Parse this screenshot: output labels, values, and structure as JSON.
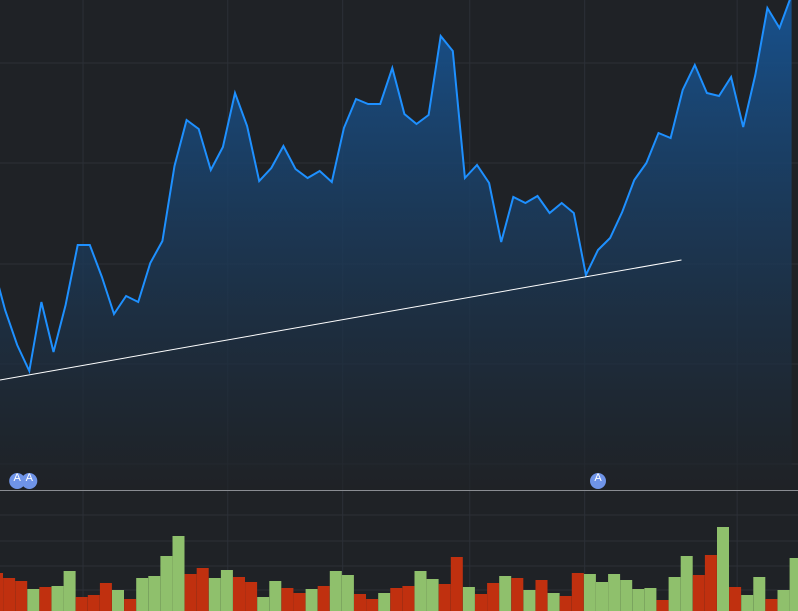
{
  "chart_data": [
    {
      "type": "area",
      "color": "#1e90ff",
      "fill_color": "#17528f",
      "values": [
        225,
        180,
        145,
        119,
        188,
        138,
        185,
        245,
        245,
        213,
        176,
        194,
        188,
        227,
        249,
        324,
        370,
        361,
        320,
        343,
        397,
        364,
        309,
        322,
        344,
        321,
        312,
        319,
        308,
        362,
        391,
        386,
        386,
        422,
        376,
        366,
        375,
        454,
        439,
        312,
        325,
        307,
        248,
        293,
        287,
        294,
        277,
        287,
        277,
        215,
        240,
        252,
        278,
        310,
        327,
        357,
        352,
        400,
        425,
        397,
        394,
        413,
        363,
        415,
        482,
        462,
        495
      ],
      "ylim": [
        0,
        490
      ],
      "grid": true,
      "grid_y": [
        427,
        327,
        226,
        126,
        26
      ],
      "grid_x": [
        7.44,
        19.4,
        28.9,
        39.4,
        48.9,
        61.5
      ],
      "trend_line": {
        "x": [
          0.58,
          56.9
        ],
        "values": [
          110,
          230
        ],
        "color": "#ffffff"
      },
      "events": {
        "x": [
          2,
          3,
          50
        ],
        "labels": [
          "A",
          "A",
          "A"
        ],
        "color": "#6f94e8"
      }
    },
    {
      "type": "bar",
      "values": [
        38,
        33,
        30,
        22,
        24,
        25,
        40,
        14,
        16,
        28,
        21,
        12,
        33,
        35,
        55,
        75,
        37,
        43,
        33,
        41,
        34,
        29,
        14,
        30,
        23,
        18,
        22,
        25,
        40,
        36,
        17,
        12,
        18,
        23,
        25,
        40,
        32,
        27,
        54,
        24,
        17,
        28,
        35,
        33,
        21,
        31,
        18,
        15,
        38,
        37,
        29,
        37,
        31,
        22,
        23,
        11,
        34,
        55,
        36,
        56,
        84,
        24,
        16,
        34,
        12,
        21,
        53
      ],
      "colors": [
        "#c0300f",
        "#c0300f",
        "#c0300f",
        "#8fc06c",
        "#c0300f",
        "#8fc06c",
        "#8fc06c",
        "#c0300f",
        "#c0300f",
        "#c0300f",
        "#8fc06c",
        "#c0300f",
        "#8fc06c",
        "#8fc06c",
        "#8fc06c",
        "#8fc06c",
        "#c0300f",
        "#c0300f",
        "#8fc06c",
        "#8fc06c",
        "#c0300f",
        "#c0300f",
        "#8fc06c",
        "#8fc06c",
        "#c0300f",
        "#c0300f",
        "#8fc06c",
        "#c0300f",
        "#8fc06c",
        "#8fc06c",
        "#c0300f",
        "#c0300f",
        "#8fc06c",
        "#c0300f",
        "#c0300f",
        "#8fc06c",
        "#8fc06c",
        "#c0300f",
        "#c0300f",
        "#8fc06c",
        "#c0300f",
        "#c0300f",
        "#8fc06c",
        "#c0300f",
        "#8fc06c",
        "#c0300f",
        "#8fc06c",
        "#c0300f",
        "#c0300f",
        "#8fc06c",
        "#8fc06c",
        "#8fc06c",
        "#8fc06c",
        "#8fc06c",
        "#8fc06c",
        "#c0300f",
        "#8fc06c",
        "#8fc06c",
        "#c0300f",
        "#c0300f",
        "#8fc06c",
        "#c0300f",
        "#8fc06c",
        "#8fc06c",
        "#c0300f",
        "#8fc06c",
        "#8fc06c"
      ],
      "ylim": [
        0,
        121
      ],
      "grid": true,
      "grid_y": [
        96,
        70,
        45,
        21
      ]
    }
  ]
}
